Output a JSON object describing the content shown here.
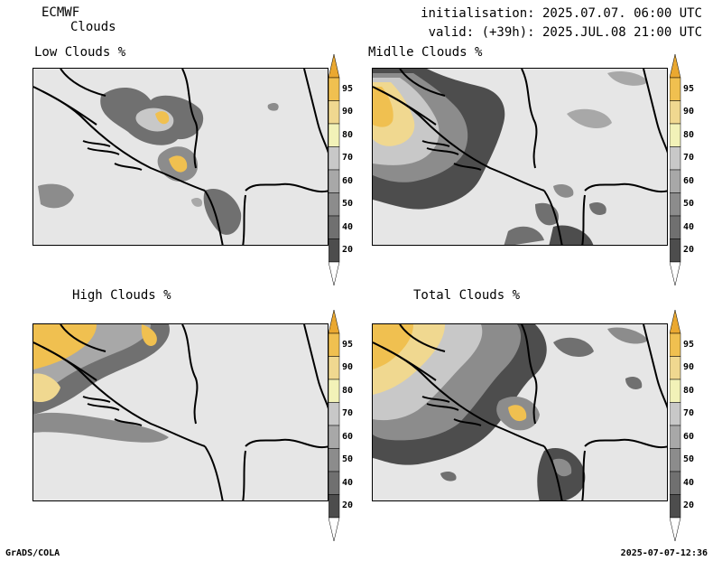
{
  "header": {
    "model": "ECMWF",
    "product": "Clouds",
    "init_label": "initialisation: 2025.07.07. 06:00 UTC",
    "valid_label": "valid: (+39h): 2025.JUL.08 21:00 UTC"
  },
  "panels": [
    {
      "id": "low",
      "title": "Low Clouds %"
    },
    {
      "id": "mid",
      "title": "Midlle Clouds %"
    },
    {
      "id": "high",
      "title": "High Clouds %"
    },
    {
      "id": "total",
      "title": "Total Clouds %"
    }
  ],
  "colorbar": {
    "levels": [
      "20",
      "40",
      "50",
      "60",
      "70",
      "80",
      "90",
      "95"
    ],
    "colors": {
      "c20": "#4d4d4d",
      "c40": "#707070",
      "c50": "#8c8c8c",
      "c60": "#a8a8a8",
      "c70": "#c8c8c8",
      "c80": "#f2f2b8",
      "c90": "#f0d890",
      "c95": "#f0c050",
      "top": "#eaa830"
    }
  },
  "footer": {
    "left": "GrADS/COLA",
    "right": "2025-07-07-12:36"
  }
}
